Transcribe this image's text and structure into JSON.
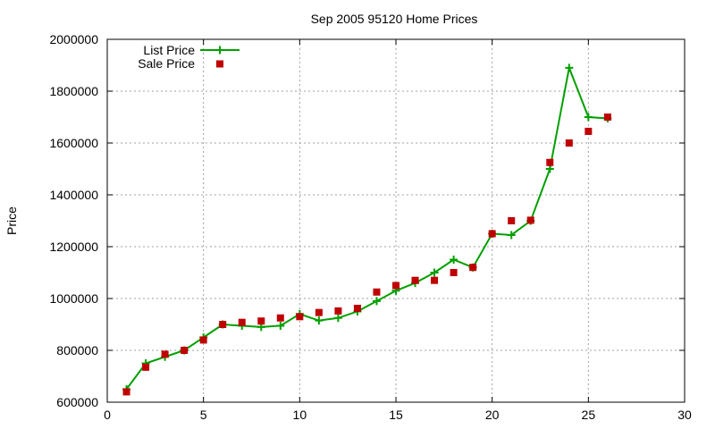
{
  "chart_data": {
    "type": "line",
    "title": "Sep 2005 95120 Home Prices",
    "xlabel": "",
    "ylabel": "Price",
    "xlim": [
      0,
      30
    ],
    "ylim": [
      600000,
      2000000
    ],
    "x_ticks": [
      "0",
      "5",
      "10",
      "15",
      "20",
      "25",
      "30"
    ],
    "y_ticks": [
      "600000",
      "800000",
      "1000000",
      "1200000",
      "1400000",
      "1600000",
      "1800000",
      "2000000"
    ],
    "grid": true,
    "legend_position": "top-left",
    "series": [
      {
        "name": "List Price",
        "style": "line+cross",
        "color": "#00a000",
        "x": [
          1,
          2,
          3,
          4,
          5,
          6,
          7,
          8,
          9,
          10,
          11,
          12,
          13,
          14,
          15,
          16,
          17,
          18,
          19,
          20,
          21,
          22,
          23,
          24,
          25,
          26
        ],
        "y": [
          650000,
          750000,
          775000,
          800000,
          850000,
          900000,
          895000,
          890000,
          895000,
          940000,
          915000,
          925000,
          950000,
          990000,
          1030000,
          1060000,
          1100000,
          1150000,
          1120000,
          1250000,
          1245000,
          1300000,
          1500000,
          1890000,
          1700000,
          1695000
        ]
      },
      {
        "name": "Sale Price",
        "style": "square",
        "color": "#c00000",
        "x": [
          1,
          2,
          3,
          4,
          5,
          6,
          7,
          8,
          9,
          10,
          11,
          12,
          13,
          14,
          15,
          16,
          17,
          18,
          19,
          20,
          21,
          22,
          23,
          24,
          25,
          26
        ],
        "y": [
          640000,
          735000,
          785000,
          800000,
          840000,
          900000,
          908000,
          913000,
          925000,
          930000,
          946000,
          952000,
          962000,
          1025000,
          1050000,
          1070000,
          1070000,
          1100000,
          1120000,
          1250000,
          1300000,
          1302000,
          1525000,
          1600000,
          1645000,
          1700000
        ]
      }
    ]
  }
}
